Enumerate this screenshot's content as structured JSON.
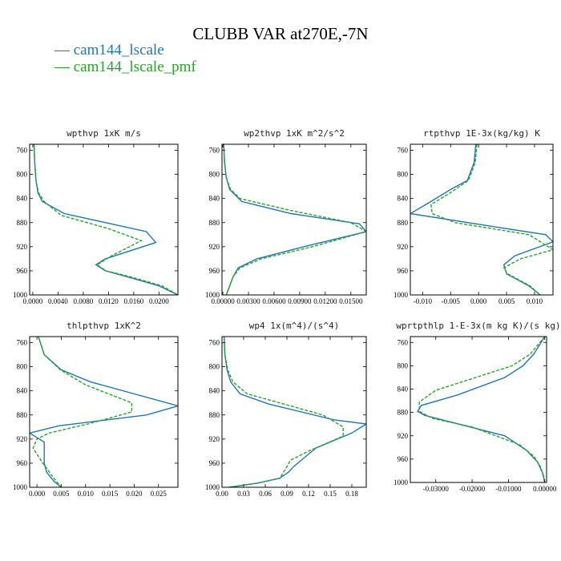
{
  "title": "CLUBB VAR at270E,-7N",
  "legend": [
    {
      "label": "— cam144_lscale",
      "color": "#1f77b4"
    },
    {
      "label": "— cam144_lscale_pmf",
      "color": "#2ca02c"
    }
  ],
  "chart_data": [
    {
      "type": "line",
      "title": "wpthvp  1xK m/s",
      "xlim": [
        -0.0005,
        0.023
      ],
      "ylim": [
        1000,
        750
      ],
      "xticks": [
        0.0,
        0.004,
        0.008,
        0.012,
        0.016,
        0.02
      ],
      "xticklabels": [
        "0.0000",
        "0.0040",
        "0.0080",
        "0.0120",
        "0.0160",
        "0.0200"
      ],
      "yticks": [
        760,
        800,
        840,
        880,
        920,
        960,
        1000
      ],
      "yticklabels": [
        "760",
        "800",
        "840",
        "880",
        "920",
        "960",
        "1000"
      ],
      "series": [
        {
          "name": "cam144_lscale",
          "color": "#1f77b4",
          "dashed": false,
          "x": [
            0.0002,
            0.0003,
            0.0005,
            0.0008,
            0.0015,
            0.005,
            0.018,
            0.0195,
            0.0115,
            0.01,
            0.0115,
            0.015,
            0.02,
            0.023
          ],
          "y": [
            750,
            780,
            810,
            830,
            845,
            865,
            895,
            913,
            940,
            950,
            960,
            970,
            985,
            1000
          ]
        },
        {
          "name": "cam144_lscale_pmf",
          "color": "#2ca02c",
          "dashed": true,
          "x": [
            0.0002,
            0.0003,
            0.0005,
            0.0009,
            0.0018,
            0.0045,
            0.012,
            0.0172,
            0.0125,
            0.0102,
            0.0116,
            0.0155,
            0.0205,
            0.023
          ],
          "y": [
            750,
            780,
            810,
            830,
            845,
            868,
            890,
            910,
            935,
            950,
            960,
            970,
            985,
            1000
          ]
        }
      ]
    },
    {
      "type": "line",
      "title": "wp2thvp  1xK m^2/s^2",
      "xlim": [
        -0.0001,
        0.0168
      ],
      "ylim": [
        1000,
        750
      ],
      "xticks": [
        0.0,
        0.003,
        0.006,
        0.009,
        0.012,
        0.015
      ],
      "xticklabels": [
        "0.00000",
        "0.00300",
        "0.00600",
        "0.00900",
        "0.01200",
        "0.01500"
      ],
      "yticks": [
        760,
        800,
        840,
        880,
        920,
        960,
        1000
      ],
      "yticklabels": [
        "760",
        "800",
        "840",
        "880",
        "920",
        "960",
        "1000"
      ],
      "series": [
        {
          "name": "cam144_lscale",
          "color": "#1f77b4",
          "dashed": false,
          "x": [
            0.0001,
            0.0002,
            0.0004,
            0.0008,
            0.0022,
            0.008,
            0.016,
            0.0168,
            0.0095,
            0.004,
            0.0018,
            0.0012,
            0.0008,
            0.0004
          ],
          "y": [
            750,
            780,
            805,
            825,
            845,
            865,
            882,
            895,
            920,
            940,
            955,
            970,
            985,
            1000
          ]
        },
        {
          "name": "cam144_lscale_pmf",
          "color": "#2ca02c",
          "dashed": true,
          "x": [
            0.0001,
            0.0002,
            0.0004,
            0.0009,
            0.002,
            0.008,
            0.015,
            0.0168,
            0.0105,
            0.0045,
            0.002,
            0.0012,
            0.0008,
            0.0004
          ],
          "y": [
            750,
            780,
            805,
            825,
            840,
            860,
            880,
            895,
            920,
            940,
            955,
            970,
            985,
            1000
          ]
        }
      ]
    },
    {
      "type": "line",
      "title": "rtpthvp  1E-3x(kg/kg) K",
      "xlim": [
        -0.0122,
        0.0133
      ],
      "ylim": [
        1000,
        750
      ],
      "xticks": [
        -0.01,
        -0.005,
        0.0,
        0.005,
        0.01
      ],
      "xticklabels": [
        "-0.010",
        "-0.005",
        "0.000",
        "0.005",
        "0.010"
      ],
      "yticks": [
        760,
        800,
        840,
        880,
        920,
        960,
        1000
      ],
      "yticklabels": [
        "760",
        "800",
        "840",
        "880",
        "920",
        "960",
        "1000"
      ],
      "series": [
        {
          "name": "cam144_lscale",
          "color": "#1f77b4",
          "dashed": false,
          "x": [
            -0.0005,
            -0.0008,
            -0.002,
            -0.005,
            -0.0085,
            -0.0122,
            0.005,
            0.012,
            0.0133,
            0.0065,
            0.0045,
            0.005,
            0.009,
            0.011
          ],
          "y": [
            750,
            780,
            810,
            825,
            845,
            865,
            890,
            900,
            912,
            935,
            950,
            965,
            985,
            1000
          ]
        },
        {
          "name": "cam144_lscale_pmf",
          "color": "#2ca02c",
          "dashed": true,
          "x": [
            -0.0003,
            -0.0006,
            -0.0018,
            -0.005,
            -0.0085,
            -0.0083,
            -0.0042,
            0.009,
            0.0133,
            0.0075,
            0.0045,
            0.0052,
            0.0092,
            0.011
          ],
          "y": [
            750,
            780,
            810,
            830,
            850,
            865,
            880,
            900,
            925,
            940,
            955,
            965,
            985,
            1000
          ]
        }
      ]
    },
    {
      "type": "line",
      "title": "thlpthvp  1xK^2",
      "xlim": [
        -0.0015,
        0.029
      ],
      "ylim": [
        1000,
        750
      ],
      "xticks": [
        0.0,
        0.005,
        0.01,
        0.015,
        0.02,
        0.025
      ],
      "xticklabels": [
        "0.000",
        "0.005",
        "0.010",
        "0.015",
        "0.020",
        "0.025"
      ],
      "yticks": [
        760,
        800,
        840,
        880,
        920,
        960,
        1000
      ],
      "yticklabels": [
        "760",
        "800",
        "840",
        "880",
        "920",
        "960",
        "1000"
      ],
      "series": [
        {
          "name": "cam144_lscale",
          "color": "#1f77b4",
          "dashed": false,
          "x": [
            0.0003,
            0.0015,
            0.005,
            0.011,
            0.029,
            0.0225,
            0.0045,
            -0.0015,
            0.0015,
            0.0015,
            0.002,
            0.0035,
            0.005
          ],
          "y": [
            750,
            780,
            805,
            825,
            865,
            880,
            898,
            910,
            925,
            960,
            975,
            990,
            1000
          ]
        },
        {
          "name": "cam144_lscale_pmf",
          "color": "#2ca02c",
          "dashed": true,
          "x": [
            0.0003,
            0.0015,
            0.0048,
            0.01,
            0.0195,
            0.0195,
            0.0105,
            0.0025,
            0.0,
            -0.0008,
            0.0012,
            0.0035,
            0.005
          ],
          "y": [
            750,
            780,
            805,
            830,
            860,
            875,
            895,
            910,
            920,
            935,
            960,
            985,
            1000
          ]
        }
      ]
    },
    {
      "type": "line",
      "title": "wp4  1x(m^4)/(s^4)",
      "xlim": [
        0.0,
        0.2
      ],
      "ylim": [
        1000,
        750
      ],
      "xticks": [
        0.0,
        0.03,
        0.06,
        0.09,
        0.12,
        0.15,
        0.18
      ],
      "xticklabels": [
        "0.00",
        "0.03",
        "0.06",
        "0.09",
        "0.12",
        "0.15",
        "0.18"
      ],
      "yticks": [
        760,
        800,
        840,
        880,
        920,
        960,
        1000
      ],
      "yticklabels": [
        "760",
        "800",
        "840",
        "880",
        "920",
        "960",
        "1000"
      ],
      "series": [
        {
          "name": "cam144_lscale",
          "color": "#1f77b4",
          "dashed": false,
          "x": [
            0.003,
            0.004,
            0.007,
            0.012,
            0.025,
            0.065,
            0.11,
            0.155,
            0.2,
            0.18,
            0.13,
            0.115,
            0.1,
            0.092,
            0.08,
            0.05,
            0.01
          ],
          "y": [
            750,
            780,
            805,
            825,
            845,
            862,
            875,
            888,
            895,
            910,
            935,
            950,
            965,
            975,
            985,
            993,
            1000
          ]
        },
        {
          "name": "cam144_lscale_pmf",
          "color": "#2ca02c",
          "dashed": true,
          "x": [
            0.003,
            0.004,
            0.008,
            0.015,
            0.035,
            0.08,
            0.14,
            0.168,
            0.168,
            0.12,
            0.095,
            0.088,
            0.08,
            0.05,
            0.01
          ],
          "y": [
            750,
            780,
            805,
            825,
            845,
            860,
            880,
            900,
            915,
            940,
            955,
            970,
            985,
            993,
            1000
          ]
        }
      ]
    },
    {
      "type": "line",
      "title": "wprtpthlp  1-E-3x(m kg K)/(s kg)",
      "xlim": [
        -0.037,
        0.0005
      ],
      "ylim": [
        1000,
        750
      ],
      "xticks": [
        -0.03,
        -0.02,
        -0.01,
        0.0
      ],
      "xticklabels": [
        "-0.03000",
        "-0.02000",
        "-0.01000",
        "0.00000"
      ],
      "yticks": [
        760,
        800,
        840,
        880,
        920,
        960,
        1000
      ],
      "yticklabels": [
        "760",
        "800",
        "840",
        "880",
        "920",
        "960",
        "1000"
      ],
      "series": [
        {
          "name": "cam144_lscale",
          "color": "#1f77b4",
          "dashed": false,
          "x": [
            0.0,
            -0.003,
            -0.006,
            -0.011,
            -0.024,
            -0.034,
            -0.035,
            -0.033,
            -0.011,
            -0.005,
            -0.002,
            -0.0005,
            0.0
          ],
          "y": [
            750,
            780,
            800,
            820,
            850,
            868,
            878,
            885,
            920,
            945,
            965,
            985,
            1000
          ]
        },
        {
          "name": "cam144_lscale_pmf",
          "color": "#2ca02c",
          "dashed": true,
          "x": [
            0.0,
            -0.004,
            -0.009,
            -0.019,
            -0.03,
            -0.0345,
            -0.0345,
            -0.031,
            -0.02,
            -0.007,
            -0.003,
            -0.001,
            0.0
          ],
          "y": [
            750,
            780,
            800,
            820,
            842,
            862,
            878,
            890,
            905,
            935,
            955,
            975,
            1000
          ]
        }
      ]
    }
  ]
}
